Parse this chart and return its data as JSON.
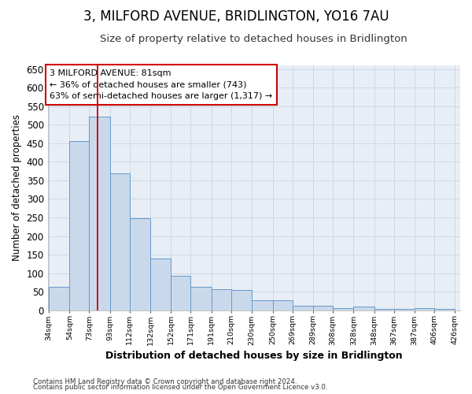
{
  "title": "3, MILFORD AVENUE, BRIDLINGTON, YO16 7AU",
  "subtitle": "Size of property relative to detached houses in Bridlington",
  "xlabel": "Distribution of detached houses by size in Bridlington",
  "ylabel": "Number of detached properties",
  "footnote1": "Contains HM Land Registry data © Crown copyright and database right 2024.",
  "footnote2": "Contains public sector information licensed under the Open Government Licence v3.0.",
  "annotation_line1": "3 MILFORD AVENUE: 81sqm",
  "annotation_line2": "← 36% of detached houses are smaller (743)",
  "annotation_line3": "63% of semi-detached houses are larger (1,317) →",
  "property_size": 81,
  "bar_left_edges": [
    34,
    54,
    73,
    93,
    112,
    132,
    152,
    171,
    191,
    210,
    230,
    250,
    269,
    289,
    308,
    328,
    348,
    367,
    387,
    406
  ],
  "bar_widths": [
    20,
    19,
    20,
    19,
    20,
    20,
    19,
    20,
    19,
    20,
    20,
    19,
    20,
    19,
    20,
    20,
    19,
    20,
    19,
    20
  ],
  "bar_values": [
    62,
    457,
    521,
    370,
    248,
    139,
    93,
    62,
    57,
    55,
    26,
    26,
    11,
    12,
    5,
    9,
    3,
    4,
    5,
    3
  ],
  "tick_labels": [
    "34sqm",
    "54sqm",
    "73sqm",
    "93sqm",
    "112sqm",
    "132sqm",
    "152sqm",
    "171sqm",
    "191sqm",
    "210sqm",
    "230sqm",
    "250sqm",
    "269sqm",
    "289sqm",
    "308sqm",
    "328sqm",
    "348sqm",
    "367sqm",
    "387sqm",
    "406sqm",
    "426sqm"
  ],
  "bar_color": "#c9d9eb",
  "bar_edge_color": "#6699cc",
  "red_line_color": "#cc0000",
  "grid_color": "#c8d4e3",
  "background_color": "#e8eef6",
  "annotation_box_facecolor": "#ffffff",
  "annotation_box_edgecolor": "#cc0000",
  "ylim": [
    0,
    660
  ],
  "yticks": [
    0,
    50,
    100,
    150,
    200,
    250,
    300,
    350,
    400,
    450,
    500,
    550,
    600,
    650
  ],
  "title_fontsize": 12,
  "subtitle_fontsize": 9.5
}
